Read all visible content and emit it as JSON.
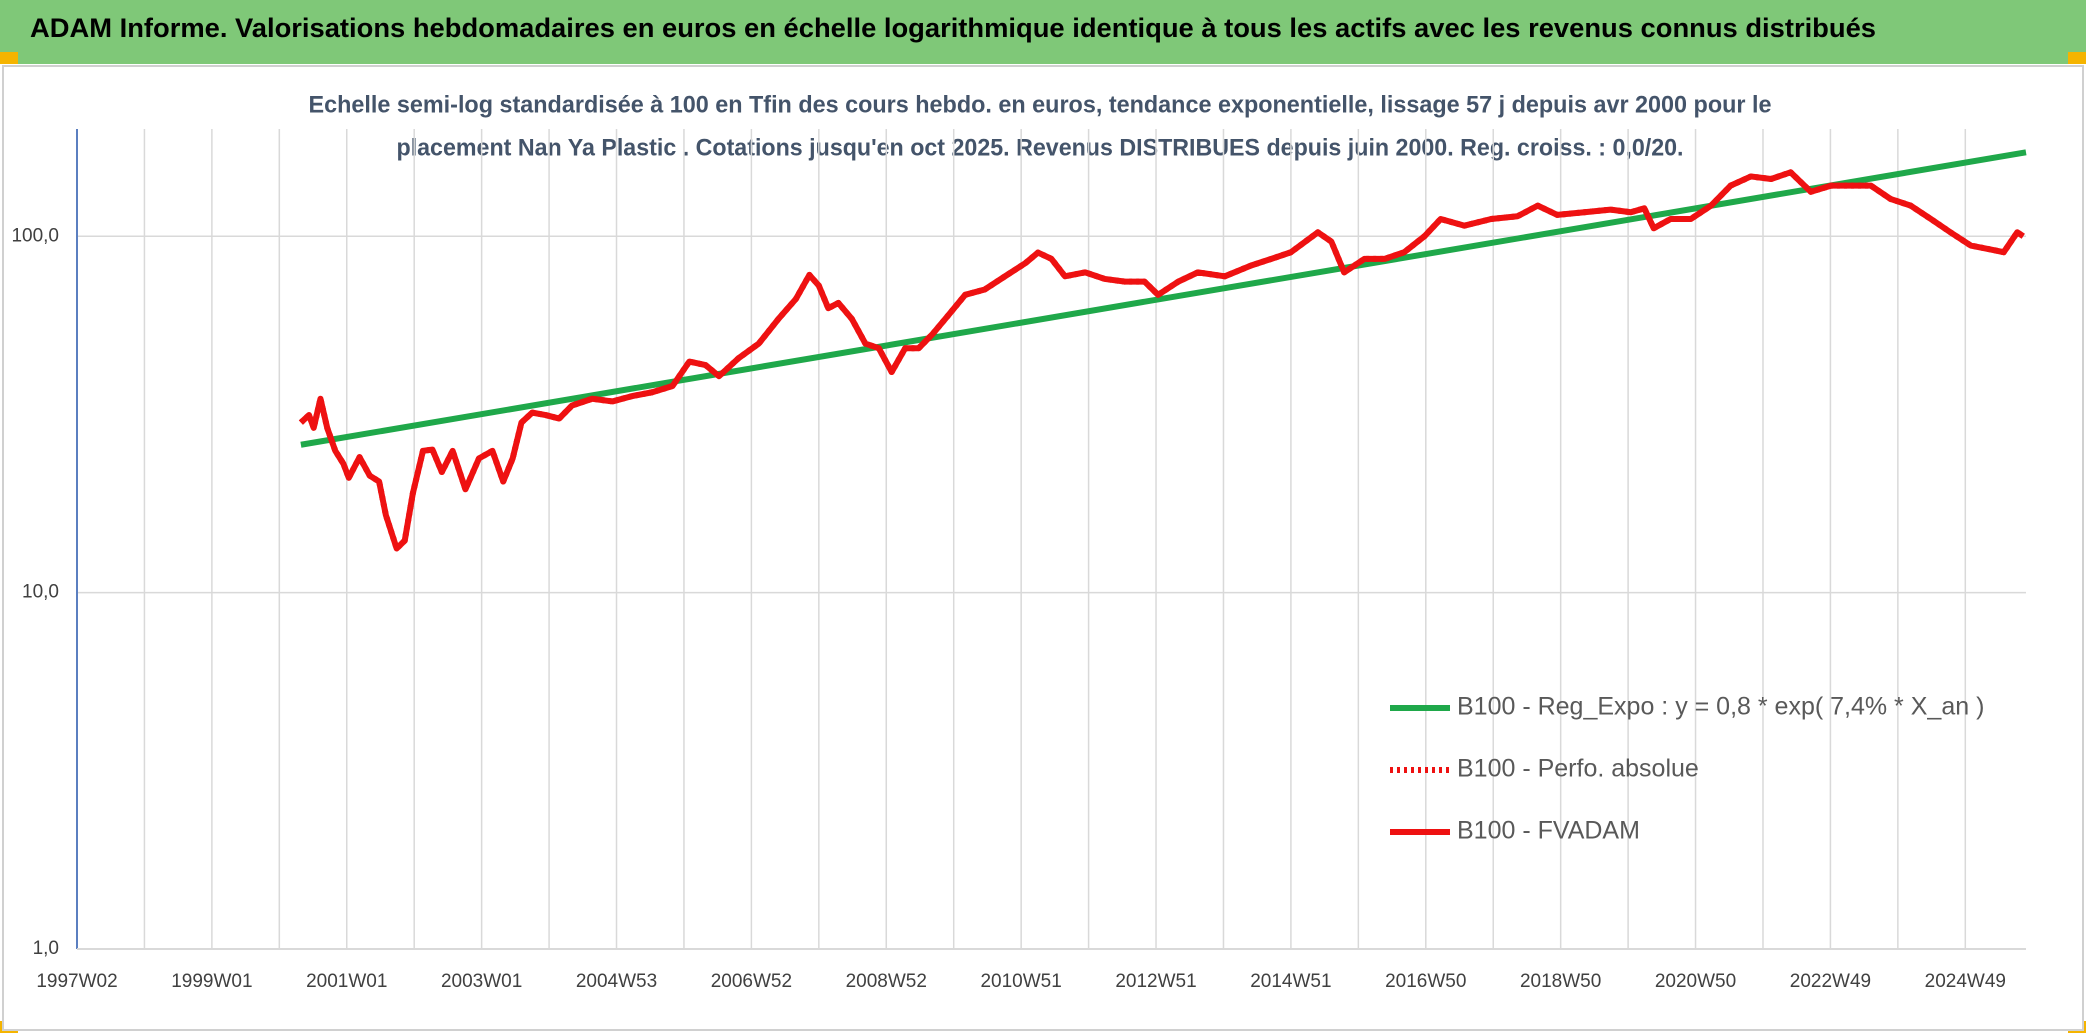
{
  "header": {
    "title": "ADAM Informe. Valorisations hebdomadaires en euros en échelle logarithmique identique à tous les actifs avec les revenus connus distribués"
  },
  "chart_data": {
    "type": "line",
    "title": [
      "Echelle semi-log standardisée à 100 en Tfin des cours hebdo. en euros, tendance exponentielle, lissage 57 j depuis avr 2000 pour le",
      "placement Nan Ya Plastic . Cotations jusqu'en oct 2025. Revenus DISTRIBUES depuis juin 2000. Reg. croiss. : 0,0/20."
    ],
    "log_scale": true,
    "grid": true,
    "legend": "lower right",
    "ylim": [
      1,
      200
    ],
    "yticks": [
      {
        "value": 1,
        "label": "1,0"
      },
      {
        "value": 10,
        "label": "10,0"
      },
      {
        "value": 100,
        "label": "100,0"
      }
    ],
    "xlim": [
      1997,
      2025.9
    ],
    "xticks": [
      {
        "value": 1997,
        "label": "1997W02"
      },
      {
        "value": 1999,
        "label": "1999W01"
      },
      {
        "value": 2001,
        "label": "2001W01"
      },
      {
        "value": 2003,
        "label": "2003W01"
      },
      {
        "value": 2005,
        "label": "2004W53"
      },
      {
        "value": 2007,
        "label": "2006W52"
      },
      {
        "value": 2009,
        "label": "2008W52"
      },
      {
        "value": 2011,
        "label": "2010W51"
      },
      {
        "value": 2013,
        "label": "2012W51"
      },
      {
        "value": 2015,
        "label": "2014W51"
      },
      {
        "value": 2017,
        "label": "2016W50"
      },
      {
        "value": 2019,
        "label": "2018W50"
      },
      {
        "value": 2021,
        "label": "2020W50"
      },
      {
        "value": 2023,
        "label": "2022W49"
      },
      {
        "value": 2025,
        "label": "2024W49"
      }
    ],
    "series": [
      {
        "name": "B100 - Reg_Expo : y = 0,8 * exp( 7,4% *  X_an )",
        "color": "#1fa84a",
        "style": "solid",
        "x": [
          2000.32,
          2025.9
        ],
        "values": [
          26,
          172
        ]
      },
      {
        "name": "B100 - Perfo. absolue",
        "color": "#ee1111",
        "style": "dotted",
        "x": [
          2000.32,
          2000.44,
          2000.51,
          2000.61,
          2000.71,
          2000.83,
          2000.95,
          2001.03,
          2001.19,
          2001.34,
          2001.48,
          2001.58,
          2001.74,
          2001.86,
          2001.98,
          2002.13,
          2002.27,
          2002.41,
          2002.57,
          2002.76,
          2002.96,
          2003.16,
          2003.32,
          2003.46,
          2003.59,
          2003.75,
          2003.95,
          2004.15,
          2004.34,
          2004.64,
          2004.94,
          2005.23,
          2005.53,
          2005.83,
          2006.08,
          2006.32,
          2006.52,
          2006.81,
          2007.11,
          2007.4,
          2007.66,
          2007.86,
          2008.0,
          2008.14,
          2008.29,
          2008.49,
          2008.69,
          2008.89,
          2009.08,
          2009.28,
          2009.48,
          2009.68,
          2009.91,
          2010.17,
          2010.46,
          2010.76,
          2011.06,
          2011.25,
          2011.45,
          2011.65,
          2011.95,
          2012.24,
          2012.54,
          2012.83,
          2013.03,
          2013.33,
          2013.62,
          2014.02,
          2014.41,
          2014.71,
          2015.0,
          2015.4,
          2015.6,
          2015.79,
          2016.09,
          2016.39,
          2016.68,
          2016.98,
          2017.22,
          2017.57,
          2017.97,
          2018.36,
          2018.66,
          2018.95,
          2019.35,
          2019.74,
          2020.04,
          2020.24,
          2020.38,
          2020.63,
          2020.93,
          2021.23,
          2021.52,
          2021.82,
          2022.12,
          2022.41,
          2022.71,
          2023.01,
          2023.3,
          2023.6,
          2023.89,
          2024.19,
          2024.49,
          2024.78,
          2025.08,
          2025.38,
          2025.57,
          2025.77,
          2025.86
        ],
        "values": [
          30,
          31.5,
          29,
          35,
          29,
          25,
          23,
          21,
          24,
          21.3,
          20.5,
          16.5,
          13.3,
          14,
          19,
          25,
          25.2,
          21.8,
          25,
          19.5,
          23.8,
          25,
          20.5,
          23.8,
          30,
          32,
          31.5,
          30.8,
          33.5,
          35,
          34.4,
          35.6,
          36.5,
          38,
          44.5,
          43.5,
          40.5,
          45.5,
          50,
          58.6,
          66.7,
          77.9,
          72.7,
          62.8,
          65,
          58.6,
          50,
          48.5,
          41.6,
          48.5,
          48.5,
          53,
          59.7,
          68.5,
          70.9,
          77.2,
          84,
          90,
          86.4,
          77.2,
          79.2,
          75.9,
          74.6,
          74.6,
          68.5,
          74.6,
          79.2,
          77.2,
          82.8,
          86.4,
          90.2,
          102.6,
          96.6,
          79.2,
          86.4,
          86.4,
          90.2,
          100,
          111.8,
          107.1,
          111.8,
          113.8,
          121.9,
          114.8,
          116.8,
          118.8,
          116.8,
          119.8,
          105.3,
          111.8,
          111.8,
          121.9,
          138.7,
          147.2,
          144.8,
          151.2,
          133.3,
          138.7,
          138.7,
          138.7,
          127.3,
          121.9,
          111.8,
          102.6,
          94.2,
          91.8,
          90.2,
          102.6,
          100
        ]
      },
      {
        "name": "B100 - FVADAM",
        "color": "#ee1111",
        "style": "solid",
        "x": [
          2000.32,
          2000.44,
          2000.51,
          2000.61,
          2000.71,
          2000.83,
          2000.95,
          2001.03,
          2001.19,
          2001.34,
          2001.48,
          2001.58,
          2001.74,
          2001.86,
          2001.98,
          2002.13,
          2002.27,
          2002.41,
          2002.57,
          2002.76,
          2002.96,
          2003.16,
          2003.32,
          2003.46,
          2003.59,
          2003.75,
          2003.95,
          2004.15,
          2004.34,
          2004.64,
          2004.94,
          2005.23,
          2005.53,
          2005.83,
          2006.08,
          2006.32,
          2006.52,
          2006.81,
          2007.11,
          2007.4,
          2007.66,
          2007.86,
          2008.0,
          2008.14,
          2008.29,
          2008.49,
          2008.69,
          2008.89,
          2009.08,
          2009.28,
          2009.48,
          2009.68,
          2009.91,
          2010.17,
          2010.46,
          2010.76,
          2011.06,
          2011.25,
          2011.45,
          2011.65,
          2011.95,
          2012.24,
          2012.54,
          2012.83,
          2013.03,
          2013.33,
          2013.62,
          2014.02,
          2014.41,
          2014.71,
          2015.0,
          2015.4,
          2015.6,
          2015.79,
          2016.09,
          2016.39,
          2016.68,
          2016.98,
          2017.22,
          2017.57,
          2017.97,
          2018.36,
          2018.66,
          2018.95,
          2019.35,
          2019.74,
          2020.04,
          2020.24,
          2020.38,
          2020.63,
          2020.93,
          2021.23,
          2021.52,
          2021.82,
          2022.12,
          2022.41,
          2022.71,
          2023.01,
          2023.3,
          2023.6,
          2023.89,
          2024.19,
          2024.49,
          2024.78,
          2025.08,
          2025.38,
          2025.57,
          2025.77,
          2025.86
        ],
        "values": [
          30,
          31.5,
          29,
          35,
          29,
          25,
          23,
          21,
          24,
          21.3,
          20.5,
          16.5,
          13.3,
          14,
          19,
          25,
          25.2,
          21.8,
          25,
          19.5,
          23.8,
          25,
          20.5,
          23.8,
          30,
          32,
          31.5,
          30.8,
          33.5,
          35,
          34.4,
          35.6,
          36.5,
          38,
          44.5,
          43.5,
          40.5,
          45.5,
          50,
          58.6,
          66.7,
          77.9,
          72.7,
          62.8,
          65,
          58.6,
          50,
          48.5,
          41.6,
          48.5,
          48.5,
          53,
          59.7,
          68.5,
          70.9,
          77.2,
          84,
          90,
          86.4,
          77.2,
          79.2,
          75.9,
          74.6,
          74.6,
          68.5,
          74.6,
          79.2,
          77.2,
          82.8,
          86.4,
          90.2,
          102.6,
          96.6,
          79.2,
          86.4,
          86.4,
          90.2,
          100,
          111.8,
          107.1,
          111.8,
          113.8,
          121.9,
          114.8,
          116.8,
          118.8,
          116.8,
          119.8,
          105.3,
          111.8,
          111.8,
          121.9,
          138.7,
          147.2,
          144.8,
          151.2,
          133.3,
          138.7,
          138.7,
          138.7,
          127.3,
          121.9,
          111.8,
          102.6,
          94.2,
          91.8,
          90.2,
          102.6,
          100
        ]
      }
    ]
  }
}
